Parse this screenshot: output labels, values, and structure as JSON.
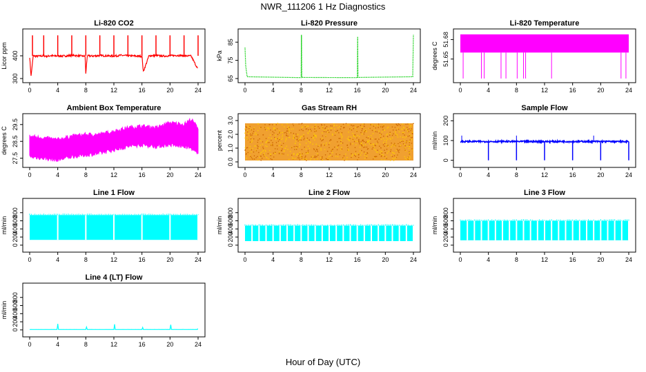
{
  "figure": {
    "title": "NWR_111206  1 Hz Diagnostics",
    "xlabel": "Hour of Day (UTC)"
  },
  "chart_data": [
    {
      "type": "line",
      "title": "Li-820 CO2",
      "ylabel": "Licor ppm",
      "color": "#ff0000",
      "xlim": [
        0,
        24
      ],
      "xticks": [
        "0",
        "4",
        "8",
        "12",
        "16",
        "20",
        "24"
      ],
      "ylim": [
        300,
        500
      ],
      "yticks": [
        "300",
        "400"
      ],
      "series": [
        {
          "x": [
            0,
            0.2,
            0.5,
            1,
            2,
            2.5,
            3,
            3.5,
            4,
            5,
            6,
            7,
            7.9,
            8,
            8.2,
            9,
            10,
            11,
            12,
            13,
            14,
            15,
            16,
            16.2,
            17,
            18,
            19,
            20,
            21,
            22,
            23,
            24
          ],
          "y": [
            395,
            310,
            400,
            398,
            400,
            398,
            401,
            399,
            400,
            399,
            402,
            400,
            398,
            320,
            400,
            399,
            401,
            400,
            399,
            402,
            400,
            399,
            398,
            330,
            400,
            401,
            399,
            400,
            402,
            400,
            399,
            340
          ]
        }
      ],
      "spikes": [
        0.4,
        2,
        4,
        6,
        8,
        10,
        12,
        14,
        16,
        18,
        20,
        22,
        24
      ],
      "spike_top": 490
    },
    {
      "type": "line",
      "title": "Li-820 Pressure",
      "ylabel": "kPa",
      "color": "#00cc00",
      "xlim": [
        0,
        24
      ],
      "xticks": [
        "0",
        "4",
        "8",
        "12",
        "16",
        "20",
        "24"
      ],
      "ylim": [
        65,
        90
      ],
      "yticks": [
        "65",
        "75",
        "85"
      ],
      "series": [
        {
          "x": [
            0,
            0.1,
            0.3,
            8,
            8.05,
            8.1,
            16,
            16.05,
            16.1,
            23.9,
            24
          ],
          "y": [
            82,
            72,
            66,
            65.5,
            89,
            65.6,
            65.5,
            88,
            65.6,
            66,
            89
          ]
        }
      ]
    },
    {
      "type": "line",
      "title": "Li-820 Temperature",
      "ylabel": "degrees C",
      "color": "#ff00ff",
      "xlim": [
        0,
        24
      ],
      "xticks": [
        "0",
        "4",
        "8",
        "12",
        "16",
        "20",
        "24"
      ],
      "ylim": [
        51.62,
        51.69
      ],
      "yticks": [
        "51.65",
        "51.68"
      ],
      "band": [
        51.66,
        51.688
      ],
      "dropouts": [
        0.4,
        3,
        3.4,
        5.8,
        6.5,
        8.1,
        9,
        9.3,
        13,
        22.9,
        23.6
      ],
      "drop_to": 51.62
    },
    {
      "type": "line",
      "title": "Ambient Box Temperature",
      "ylabel": "degrees C",
      "color": "#ff00ff",
      "xlim": [
        0,
        24
      ],
      "xticks": [
        "0",
        "4",
        "8",
        "12",
        "16",
        "20",
        "24"
      ],
      "ylim": [
        27.2,
        29.9
      ],
      "yticks": [
        "27.5",
        "28.5",
        "29.5"
      ],
      "upper": {
        "x": [
          0,
          2,
          4,
          6,
          8,
          10,
          12,
          14,
          16,
          18,
          20,
          22,
          23,
          24
        ],
        "y": [
          28.8,
          28.7,
          28.6,
          28.8,
          28.9,
          28.9,
          29.1,
          29.3,
          29.4,
          29.3,
          29.6,
          29.5,
          29.8,
          29.3
        ]
      },
      "lower": {
        "x": [
          0,
          2,
          4,
          6,
          8,
          10,
          12,
          14,
          16,
          18,
          20,
          22,
          23,
          24
        ],
        "y": [
          27.6,
          27.5,
          27.4,
          27.6,
          27.7,
          27.8,
          28.0,
          28.2,
          28.3,
          28.2,
          28.3,
          28.2,
          28.1,
          27.7
        ]
      }
    },
    {
      "type": "scatter",
      "title": "Gas Stream RH",
      "ylabel": "percent",
      "color": "#ffaa00",
      "xlim": [
        0,
        24
      ],
      "xticks": [
        "0",
        "4",
        "8",
        "12",
        "16",
        "20",
        "24"
      ],
      "ylim": [
        -0.1,
        3.2
      ],
      "yticks": [
        "0.0",
        "1.0",
        "2.0",
        "3.0"
      ],
      "band": [
        0.1,
        2.8
      ]
    },
    {
      "type": "line",
      "title": "Sample Flow",
      "ylabel": "ml/min",
      "color": "#0000ff",
      "xlim": [
        0,
        24
      ],
      "xticks": [
        "0",
        "4",
        "8",
        "12",
        "16",
        "20",
        "24"
      ],
      "ylim": [
        -15,
        215
      ],
      "yticks": [
        "0",
        "100",
        "200"
      ],
      "level": 95,
      "dips": [
        4,
        8,
        12,
        16,
        20,
        24
      ],
      "dip_to": 0,
      "spikes": [
        0.2,
        8,
        19
      ]
    },
    {
      "type": "line",
      "title": "Line 1 Flow",
      "ylabel": "ml/min",
      "color": "#00ffff",
      "xlim": [
        0,
        24
      ],
      "xticks": [
        "0",
        "4",
        "8",
        "12",
        "16",
        "20",
        "24"
      ],
      "ylim": [
        -70,
        1050
      ],
      "yticks": [
        "0",
        "200",
        "400",
        "600",
        "800"
      ],
      "band": [
        130,
        740
      ],
      "gaps": [
        4,
        8,
        12,
        16,
        20,
        24
      ]
    },
    {
      "type": "line",
      "title": "Line 2 Flow",
      "ylabel": "ml/min",
      "color": "#00ffff",
      "xlim": [
        0,
        24
      ],
      "xticks": [
        "0",
        "4",
        "8",
        "12",
        "16",
        "20",
        "24"
      ],
      "ylim": [
        -70,
        1050
      ],
      "yticks": [
        "0",
        "200",
        "400",
        "600",
        "800"
      ],
      "band": [
        100,
        480
      ],
      "gaps": [
        1,
        2,
        3,
        4,
        5,
        6,
        7,
        8,
        9,
        10,
        11,
        12,
        13,
        14,
        15,
        16,
        17,
        18,
        19,
        20,
        21,
        22,
        23,
        24
      ]
    },
    {
      "type": "line",
      "title": "Line 3 Flow",
      "ylabel": "ml/min",
      "color": "#00ffff",
      "xlim": [
        0,
        24
      ],
      "xticks": [
        "0",
        "4",
        "8",
        "12",
        "16",
        "20",
        "24"
      ],
      "ylim": [
        -70,
        1050
      ],
      "yticks": [
        "0",
        "200",
        "400",
        "600",
        "800"
      ],
      "band": [
        120,
        600
      ],
      "gaps": [
        1,
        2,
        3,
        4,
        5,
        6,
        7,
        8,
        9,
        10,
        11,
        12,
        13,
        14,
        15,
        16,
        17,
        18,
        19,
        20,
        21,
        22,
        23,
        24
      ]
    },
    {
      "type": "line",
      "title": "Line 4 (LT) Flow",
      "ylabel": "ml/min",
      "color": "#00ffff",
      "xlim": [
        0,
        24
      ],
      "xticks": [
        "0",
        "4",
        "8",
        "12",
        "16",
        "20",
        "24"
      ],
      "ylim": [
        -70,
        1050
      ],
      "yticks": [
        "0",
        "200",
        "400",
        "600",
        "800"
      ],
      "series": [
        {
          "x": [
            0,
            3.9,
            4,
            4.1,
            8,
            8.1,
            8.2,
            12,
            12.1,
            12.2,
            16,
            16.1,
            16.2,
            20,
            20.1,
            20.2,
            23.9,
            24
          ],
          "y": [
            10,
            10,
            150,
            10,
            10,
            70,
            10,
            10,
            140,
            10,
            10,
            60,
            10,
            10,
            130,
            10,
            10,
            60
          ]
        }
      ]
    }
  ]
}
